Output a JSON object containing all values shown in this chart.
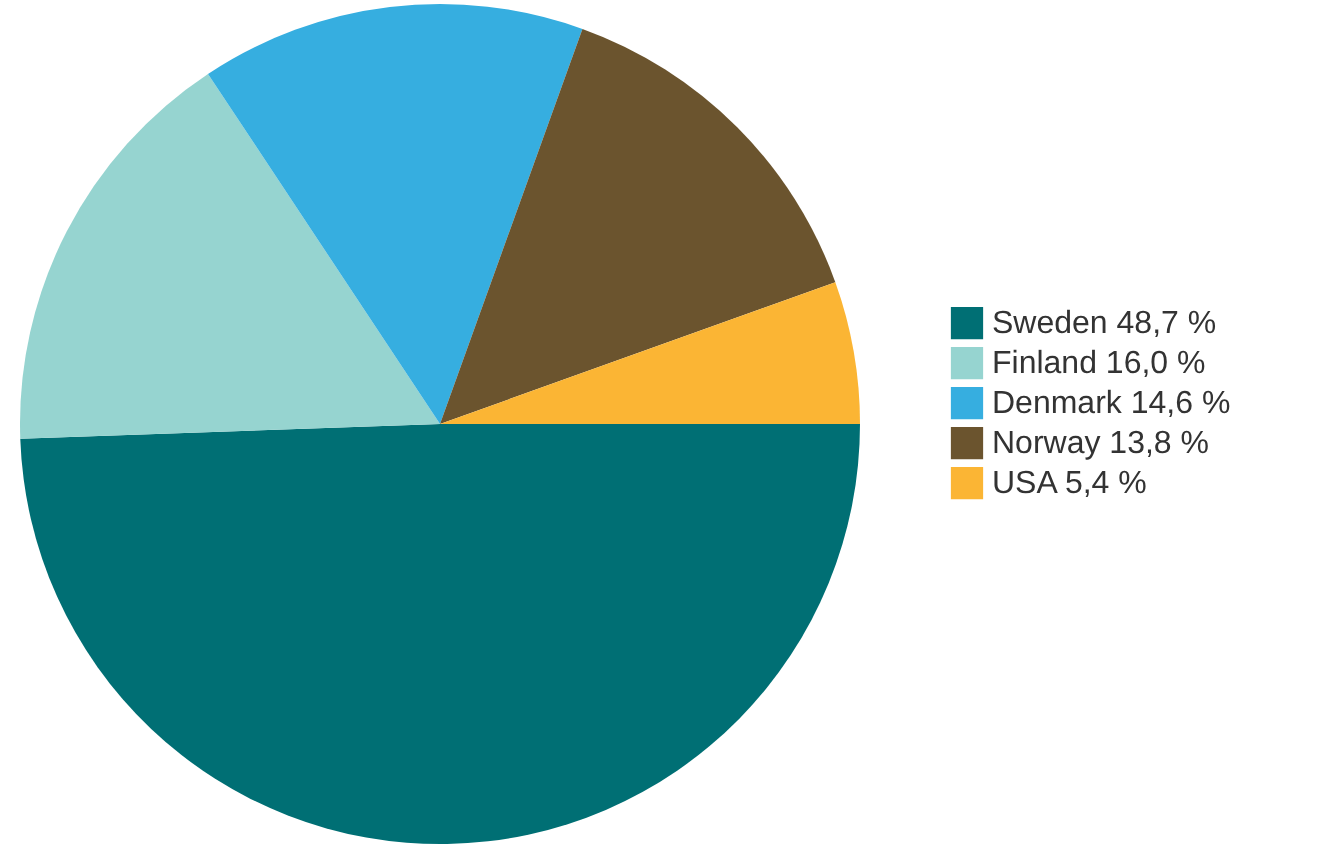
{
  "chart_data": {
    "type": "pie",
    "categories": [
      "Sweden",
      "Finland",
      "Denmark",
      "Norway",
      "USA"
    ],
    "values": [
      48.7,
      16.0,
      14.6,
      13.8,
      5.4
    ],
    "value_labels": [
      "48,7 %",
      "16,0 %",
      "14,6 %",
      "13,8 %",
      "5,4 %"
    ],
    "colors": [
      "#006f74",
      "#96d4d0",
      "#36aee0",
      "#6b542e",
      "#fbb534"
    ],
    "legend": "right"
  }
}
